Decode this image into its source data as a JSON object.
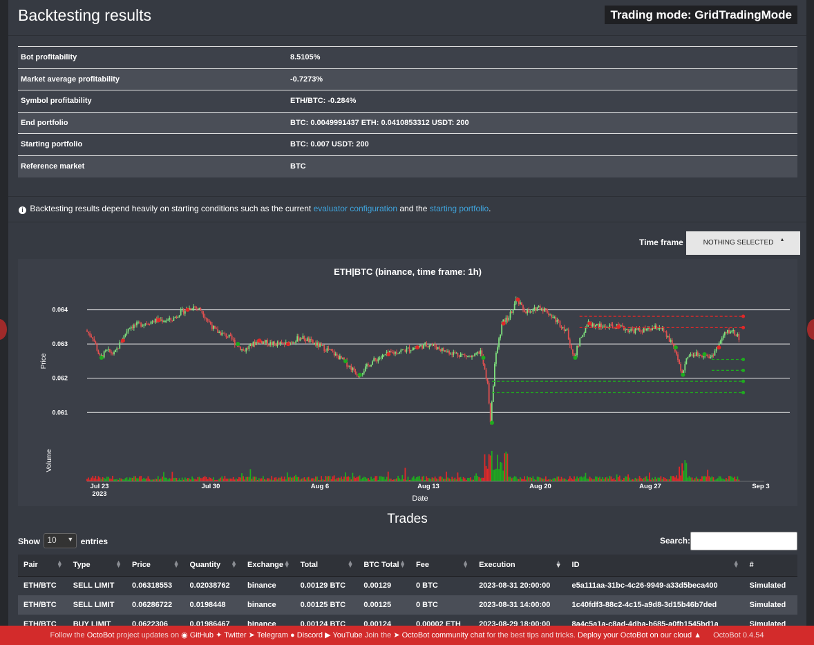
{
  "header": {
    "title": "Backtesting results",
    "trading_mode": "Trading mode: GridTradingMode"
  },
  "summary": [
    {
      "label": "Bot profitability",
      "value": "8.5105%"
    },
    {
      "label": "Market average profitability",
      "value": "-0.7273%"
    },
    {
      "label": "Symbol profitability",
      "value": "ETH/BTC: -0.284%"
    },
    {
      "label": "End portfolio",
      "value": "BTC: 0.0049991437 ETH: 0.0410853312 USDT: 200"
    },
    {
      "label": "Starting portfolio",
      "value": "BTC: 0.007 USDT: 200"
    },
    {
      "label": "Reference market",
      "value": "BTC"
    }
  ],
  "note": {
    "text1": "Backtesting results depend heavily on starting conditions such as the current",
    "link1": "evaluator configuration",
    "text2": "and the",
    "link2": "starting portfolio",
    "text3": "."
  },
  "timeframe": {
    "label": "Time frame",
    "selected": "NOTHING SELECTED"
  },
  "chart_data": {
    "type": "candlestick",
    "title": "ETH|BTC (binance, time frame: 1h)",
    "xlabel": "Date",
    "ylabel": "Price",
    "volume_label": "Volume",
    "ylim": [
      0.0604,
      0.0648
    ],
    "y_ticks": [
      "0.064",
      "0.063",
      "0.062",
      "0.061"
    ],
    "x_ticks": [
      "Jul 23\n2023",
      "Jul 30",
      "Aug 6",
      "Aug 13",
      "Aug 20",
      "Aug 27",
      "Sep 3"
    ],
    "price_path": [
      [
        0,
        0.0634
      ],
      [
        0.5,
        0.0632
      ],
      [
        1,
        0.0626
      ],
      [
        1.5,
        0.0628
      ],
      [
        2,
        0.0627
      ],
      [
        2.5,
        0.0631
      ],
      [
        3,
        0.0635
      ],
      [
        4,
        0.0636
      ],
      [
        5,
        0.0637
      ],
      [
        6,
        0.0637
      ],
      [
        6.5,
        0.0639
      ],
      [
        7,
        0.064
      ],
      [
        7.5,
        0.0641
      ],
      [
        8,
        0.064
      ],
      [
        8.5,
        0.0637
      ],
      [
        9,
        0.0634
      ],
      [
        10,
        0.0632
      ],
      [
        10.5,
        0.063
      ],
      [
        11,
        0.0628
      ],
      [
        12,
        0.0631
      ],
      [
        13,
        0.063
      ],
      [
        14,
        0.063
      ],
      [
        15,
        0.0632
      ],
      [
        16,
        0.063
      ],
      [
        17,
        0.0628
      ],
      [
        18,
        0.0625
      ],
      [
        19,
        0.0621
      ],
      [
        20,
        0.0625
      ],
      [
        21,
        0.0627
      ],
      [
        22,
        0.0628
      ],
      [
        23,
        0.0629
      ],
      [
        24,
        0.063
      ],
      [
        25,
        0.0628
      ],
      [
        26,
        0.0627
      ],
      [
        27,
        0.0626
      ],
      [
        27.5,
        0.0628
      ],
      [
        28,
        0.0618
      ],
      [
        28.2,
        0.0607
      ],
      [
        28.5,
        0.0625
      ],
      [
        29,
        0.0636
      ],
      [
        29.5,
        0.0638
      ],
      [
        30,
        0.0643
      ],
      [
        30.5,
        0.064
      ],
      [
        31,
        0.0639
      ],
      [
        31.5,
        0.0641
      ],
      [
        32,
        0.064
      ],
      [
        32.5,
        0.0638
      ],
      [
        33,
        0.0636
      ],
      [
        33.5,
        0.0634
      ],
      [
        34,
        0.0626
      ],
      [
        34.5,
        0.0632
      ],
      [
        35,
        0.0636
      ],
      [
        36,
        0.0635
      ],
      [
        37,
        0.0635
      ],
      [
        38,
        0.0634
      ],
      [
        39,
        0.0634
      ],
      [
        40,
        0.0635
      ],
      [
        40.5,
        0.0632
      ],
      [
        41,
        0.0629
      ],
      [
        41.5,
        0.0621
      ],
      [
        42,
        0.0627
      ],
      [
        43,
        0.0627
      ],
      [
        43.5,
        0.0626
      ],
      [
        44,
        0.0629
      ],
      [
        44.5,
        0.0633
      ],
      [
        45,
        0.0634
      ],
      [
        45.5,
        0.0632
      ]
    ],
    "grid_sell_orders": [
      0.06381,
      0.06348
    ],
    "grid_buy_orders": [
      0.06255,
      0.06223,
      0.06191,
      0.06158
    ],
    "grid": true,
    "legend": "none",
    "colors": {
      "up": "#7ee07e",
      "down": "#e05050",
      "sell": "#e02828",
      "buy": "#1faa1f",
      "grid": "#e8e8e8"
    }
  },
  "trades": {
    "title": "Trades",
    "show_label": "Show",
    "entries_value": "10",
    "entries_label": "entries",
    "search_label": "Search:",
    "columns": [
      "Pair",
      "Type",
      "Price",
      "Quantity",
      "Exchange",
      "Total",
      "BTC Total",
      "Fee",
      "Execution",
      "ID",
      "#"
    ],
    "rows": [
      [
        "ETH/BTC",
        "SELL LIMIT",
        "0.06318553",
        "0.02038762",
        "binance",
        "0.00129 BTC",
        "0.00129",
        "0 BTC",
        "2023-08-31 20:00:00",
        "e5a111aa-31bc-4c26-9949-a33d5beca400",
        "Simulated"
      ],
      [
        "ETH/BTC",
        "SELL LIMIT",
        "0.06286722",
        "0.0198448",
        "binance",
        "0.00125 BTC",
        "0.00125",
        "0 BTC",
        "2023-08-31 14:00:00",
        "1c40fdf3-88c2-4c15-a9d8-3d15b46b7ded",
        "Simulated"
      ],
      [
        "ETH/BTC",
        "BUY LIMIT",
        "0.0622306",
        "0.01986467",
        "binance",
        "0.00124 BTC",
        "0.00124",
        "0.00002 ETH",
        "2023-08-29 18:00:00",
        "8a4c5a1a-c8ad-4dba-b685-a0fb1545bd1a",
        "Simulated"
      ]
    ]
  },
  "footer": {
    "t1": "Follow the",
    "octobot": "OctoBot",
    "t2": "project updates on",
    "github": "GitHub",
    "twitter": "Twitter",
    "telegram": "Telegram",
    "discord": "Discord",
    "youtube": "YouTube",
    "t3": "Join the",
    "chat": "OctoBot community chat",
    "t4": "for the best tips and tricks.",
    "cloud": "Deploy your OctoBot on our cloud",
    "version": "OctoBot 0.4.54"
  }
}
